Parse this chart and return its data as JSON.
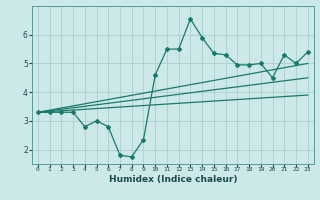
{
  "xlabel": "Humidex (Indice chaleur)",
  "ylabel": "",
  "bg_color": "#cce8e8",
  "grid_color": "#aacfcf",
  "line_color": "#1a7a6a",
  "xlim": [
    -0.5,
    23.5
  ],
  "ylim": [
    1.5,
    7.0
  ],
  "yticks": [
    2,
    3,
    4,
    5,
    6
  ],
  "xticks": [
    0,
    1,
    2,
    3,
    4,
    5,
    6,
    7,
    8,
    9,
    10,
    11,
    12,
    13,
    14,
    15,
    16,
    17,
    18,
    19,
    20,
    21,
    22,
    23
  ],
  "data_line": {
    "x": [
      0,
      1,
      2,
      3,
      4,
      5,
      6,
      7,
      8,
      9,
      10,
      11,
      12,
      13,
      14,
      15,
      16,
      17,
      18,
      19,
      20,
      21,
      22,
      23
    ],
    "y": [
      3.3,
      3.3,
      3.3,
      3.3,
      2.8,
      3.0,
      2.8,
      1.8,
      1.75,
      2.35,
      4.6,
      5.5,
      5.5,
      6.55,
      5.9,
      5.35,
      5.3,
      4.95,
      4.95,
      5.0,
      4.5,
      5.3,
      5.0,
      5.4
    ]
  },
  "trend_line1": {
    "x": [
      0,
      23
    ],
    "y": [
      3.3,
      4.5
    ]
  },
  "trend_line2": {
    "x": [
      0,
      23
    ],
    "y": [
      3.3,
      5.0
    ]
  },
  "trend_line3": {
    "x": [
      0,
      23
    ],
    "y": [
      3.3,
      3.9
    ]
  }
}
